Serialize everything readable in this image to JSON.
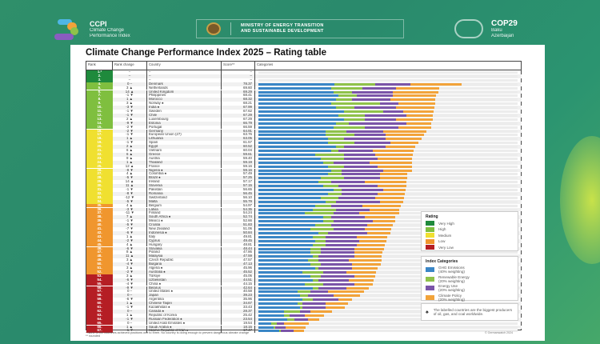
{
  "header": {
    "ccpi_abbr": "CCPI",
    "ccpi_line1": "Climate Change",
    "ccpi_line2": "Performance Index",
    "ministry_line1": "MINISTRY OF ENERGY TRANSITION",
    "ministry_line2": "AND SUSTAINABLE DEVELOPMENT",
    "cop_title": "COP29",
    "cop_line1": "Baku",
    "cop_line2": "Azerbaijan"
  },
  "title": "Climate Change Performance Index 2025 – Rating table",
  "columns": {
    "rank": "Rank",
    "change": "Rank change",
    "country": "Country",
    "score": "Score**",
    "categories": "Categories"
  },
  "colors": {
    "very_high": "#1f8a3c",
    "high": "#7fbf3f",
    "medium": "#f0e030",
    "low": "#f0962e",
    "very_low": "#b51e24",
    "ghg": "#3a86c6",
    "re": "#8fc24a",
    "eu": "#7b55a8",
    "cp": "#f2a33a"
  },
  "producer_symbol": "♠",
  "rows": [
    {
      "rank": "1.*",
      "change": "–",
      "country": "–",
      "score": "–",
      "rating": "very_high"
    },
    {
      "rank": "2.",
      "change": "–",
      "country": "–",
      "score": "–",
      "rating": "very_high"
    },
    {
      "rank": "3.",
      "change": "–",
      "country": "–",
      "score": "–",
      "rating": "very_high"
    },
    {
      "rank": "4.",
      "change": "0 –",
      "country": "Denmark",
      "score": "78.37",
      "rating": "high",
      "parts": [
        29.3,
        15.7,
        13.6,
        19.8
      ]
    },
    {
      "rank": "5.",
      "change": "3 ▲",
      "country": "Netherlands",
      "score": "69.60",
      "rating": "high",
      "parts": [
        28,
        12,
        13,
        16.6
      ]
    },
    {
      "rank": "6.",
      "change": "14 ▲",
      "country": "United Kingdom",
      "score": "69.29",
      "rating": "high",
      "parts": [
        29,
        7,
        16,
        17.3
      ]
    },
    {
      "rank": "7.",
      "change": "-1 ▼",
      "country": "Philippines",
      "score": "68.41",
      "rating": "high",
      "parts": [
        31,
        7,
        14,
        16.4
      ]
    },
    {
      "rank": "8.",
      "change": "1 ▲",
      "country": "Morocco",
      "score": "68.32",
      "rating": "high",
      "parts": [
        30,
        6,
        15,
        17.3
      ]
    },
    {
      "rank": "9.",
      "change": "3 ▲",
      "country": "Norway ♠",
      "score": "68.21",
      "rating": "high",
      "parts": [
        28,
        19,
        7,
        14.2
      ]
    },
    {
      "rank": "10.",
      "change": "-3 ▼",
      "country": "India ♠",
      "score": "67.99",
      "rating": "high",
      "parts": [
        30,
        7,
        16,
        15
      ]
    },
    {
      "rank": "11.",
      "change": "-1 ▼",
      "country": "Sweden",
      "score": "67.62",
      "rating": "high",
      "parts": [
        33,
        15,
        8,
        11.6
      ]
    },
    {
      "rank": "12.",
      "change": "-1 ▼",
      "country": "Chile",
      "score": "67.29",
      "rating": "high",
      "parts": [
        31,
        10,
        16,
        10.3
      ]
    },
    {
      "rank": "13.",
      "change": "2 ▲",
      "country": "Luxembourg",
      "score": "67.29",
      "rating": "high",
      "parts": [
        33,
        8,
        12,
        14.3
      ]
    },
    {
      "rank": "14.",
      "change": "-9 ▼",
      "country": "Estonia",
      "score": "66.79",
      "rating": "high",
      "parts": [
        30,
        5,
        22,
        9.8
      ]
    },
    {
      "rank": "15.",
      "change": "-2 ▼",
      "country": "Portugal",
      "score": "66.59",
      "rating": "high",
      "parts": [
        29,
        12,
        13,
        12.6
      ]
    },
    {
      "rank": "16.",
      "change": "-2 ▼",
      "country": "Germany",
      "score": "64.91",
      "rating": "medium",
      "parts": [
        26,
        8,
        14,
        16.9
      ]
    },
    {
      "rank": "17.",
      "change": "-1 ▼",
      "country": "European Union (27)",
      "score": "63.76",
      "rating": "medium",
      "parts": [
        26,
        11,
        12,
        14.8
      ]
    },
    {
      "rank": "18.",
      "change": "1 ▲",
      "country": "Lithuania",
      "score": "63.05",
      "rating": "medium",
      "parts": [
        27,
        6,
        16,
        14
      ]
    },
    {
      "rank": "19.",
      "change": "-1 ▼",
      "country": "Spain",
      "score": "61.57",
      "rating": "medium",
      "parts": [
        27,
        10,
        14,
        10.6
      ]
    },
    {
      "rank": "20.",
      "change": "2 ▲",
      "country": "Egypt",
      "score": "60.52",
      "rating": "medium",
      "parts": [
        30,
        3,
        16,
        11.5
      ]
    },
    {
      "rank": "21.",
      "change": "6 ▲",
      "country": "Vietnam",
      "score": "60.04",
      "rating": "medium",
      "parts": [
        28,
        3,
        13,
        16
      ]
    },
    {
      "rank": "22.",
      "change": "6 ▲",
      "country": "Greece",
      "score": "59.61",
      "rating": "medium",
      "parts": [
        22,
        11,
        12,
        14.6
      ]
    },
    {
      "rank": "23.",
      "change": "9 ▲",
      "country": "Austria",
      "score": "59.40",
      "rating": "medium",
      "parts": [
        24,
        9,
        13,
        13.4
      ]
    },
    {
      "rank": "24.",
      "change": "1 ▲",
      "country": "Thailand",
      "score": "59.19",
      "rating": "medium",
      "parts": [
        25,
        4,
        14,
        16.2
      ]
    },
    {
      "rank": "25.",
      "change": "12 ▲",
      "country": "France",
      "score": "59.16",
      "rating": "medium",
      "parts": [
        27,
        6,
        13,
        13.2
      ]
    },
    {
      "rank": "26.",
      "change": "-9 ▼",
      "country": "Nigeria ♠",
      "score": "59.16",
      "rating": "medium",
      "parts": [
        28,
        4,
        16,
        11.2
      ]
    },
    {
      "rank": "27.",
      "change": "4 ▲",
      "country": "Colombia ♠",
      "score": "57.49",
      "rating": "medium",
      "parts": [
        27,
        5,
        15,
        10.5
      ]
    },
    {
      "rank": "28.",
      "change": "-5 ▼",
      "country": "Brazil ♠",
      "score": "57.25",
      "rating": "medium",
      "parts": [
        24,
        9,
        14,
        10.3
      ]
    },
    {
      "rank": "29.",
      "change": "14 ▲",
      "country": "Ireland",
      "score": "57.17",
      "rating": "medium",
      "parts": [
        23,
        5,
        13,
        16.2
      ]
    },
    {
      "rank": "30.",
      "change": "11 ▲",
      "country": "Slovenia",
      "score": "57.15",
      "rating": "medium",
      "parts": [
        25,
        6,
        15,
        11.2
      ]
    },
    {
      "rank": "31.",
      "change": "-1 ▼",
      "country": "Pakistan",
      "score": "56.65",
      "rating": "medium",
      "parts": [
        29,
        3,
        16,
        8.7
      ]
    },
    {
      "rank": "32.",
      "change": "-8 ▼",
      "country": "Romania",
      "score": "56.45",
      "rating": "medium",
      "parts": [
        27,
        5,
        14,
        10.5
      ]
    },
    {
      "rank": "33.",
      "change": "-12 ▼",
      "country": "Switzerland",
      "score": "56.10",
      "rating": "medium",
      "parts": [
        24,
        7,
        14,
        11.1
      ]
    },
    {
      "rank": "34.",
      "change": "-5 ▼",
      "country": "Malta",
      "score": "55.79",
      "rating": "medium",
      "parts": [
        26,
        4,
        17,
        8.8
      ]
    },
    {
      "rank": "35.",
      "change": "4 ▲",
      "country": "Belgium",
      "score": "54.97",
      "rating": "low",
      "parts": [
        22,
        6,
        12,
        15
      ]
    },
    {
      "rank": "36.",
      "change": "-3 ▼",
      "country": "Latvia",
      "score": "54.35",
      "rating": "low",
      "parts": [
        21,
        9,
        13,
        11.4
      ]
    },
    {
      "rank": "37.",
      "change": "-11 ▼",
      "country": "Finland",
      "score": "54.24",
      "rating": "low",
      "parts": [
        18,
        11,
        10,
        15.2
      ]
    },
    {
      "rank": "38.",
      "change": "7 ▲",
      "country": "South Africa ♠",
      "score": "52.74",
      "rating": "low",
      "parts": [
        25,
        3,
        13,
        11.7
      ]
    },
    {
      "rank": "39.",
      "change": "-1 ▼",
      "country": "Mexico ♠",
      "score": "52.66",
      "rating": "low",
      "parts": [
        25,
        4,
        15,
        8.7
      ]
    },
    {
      "rank": "40.",
      "change": "-5 ▼",
      "country": "Croatia",
      "score": "51.83",
      "rating": "low",
      "parts": [
        22,
        6,
        14,
        9.8
      ]
    },
    {
      "rank": "41.",
      "change": "-7 ▼",
      "country": "New Zealand",
      "score": "51.06",
      "rating": "low",
      "parts": [
        20,
        9,
        12,
        10.1
      ]
    },
    {
      "rank": "42.",
      "change": "-6 ▼",
      "country": "Indonesia ♠",
      "score": "50.84",
      "rating": "low",
      "parts": [
        23,
        4,
        15,
        8.8
      ]
    },
    {
      "rank": "43.",
      "change": "1 ▲",
      "country": "Italy",
      "score": "49.81",
      "rating": "low",
      "parts": [
        21,
        5,
        12,
        11.8
      ]
    },
    {
      "rank": "44.",
      "change": "-2 ▼",
      "country": "Cyprus",
      "score": "49.45",
      "rating": "low",
      "parts": [
        22,
        4,
        13,
        10.5
      ]
    },
    {
      "rank": "45.",
      "change": "4 ▲",
      "country": "Hungary",
      "score": "48.81",
      "rating": "low",
      "parts": [
        21,
        5,
        12,
        10.8
      ]
    },
    {
      "rank": "46.",
      "change": "-6 ▼",
      "country": "Slovakia",
      "score": "48.44",
      "rating": "low",
      "parts": [
        20,
        4,
        13,
        11.4
      ]
    },
    {
      "rank": "47.",
      "change": "8 ▲",
      "country": "Poland",
      "score": "47.86",
      "rating": "low",
      "parts": [
        20,
        4,
        13,
        10.9
      ]
    },
    {
      "rank": "48.",
      "change": "11 ▲",
      "country": "Malaysia",
      "score": "47.59",
      "rating": "low",
      "parts": [
        21,
        2,
        14,
        10.6
      ]
    },
    {
      "rank": "49.",
      "change": "3 ▲",
      "country": "Czech Republic",
      "score": "47.57",
      "rating": "low",
      "parts": [
        19,
        4,
        12,
        12.6
      ]
    },
    {
      "rank": "50.",
      "change": "-4 ▼",
      "country": "Bulgaria",
      "score": "47.13",
      "rating": "low",
      "parts": [
        20,
        4,
        12,
        11.1
      ]
    },
    {
      "rank": "51.",
      "change": "3 ▲",
      "country": "Algeria ♠",
      "score": "45.96",
      "rating": "low",
      "parts": [
        22,
        1,
        13,
        10
      ]
    },
    {
      "rank": "52.",
      "change": "-2 ▼",
      "country": "Australia ♠",
      "score": "45.52",
      "rating": "low",
      "parts": [
        17,
        8,
        9,
        11.5
      ]
    },
    {
      "rank": "53.",
      "change": "3 ▲",
      "country": "Türkiye",
      "score": "45.06",
      "rating": "very_low",
      "parts": [
        20,
        4,
        13,
        8.1
      ]
    },
    {
      "rank": "54.",
      "change": "-6 ▼",
      "country": "Uzbekistan",
      "score": "44.51",
      "rating": "very_low",
      "parts": [
        21,
        2,
        12,
        9.5
      ]
    },
    {
      "rank": "55.",
      "change": "-4 ▼",
      "country": "China ♠",
      "score": "44.15",
      "rating": "very_low",
      "parts": [
        18,
        7,
        12,
        7.2
      ]
    },
    {
      "rank": "56.",
      "change": "-9 ▼",
      "country": "Belarus",
      "score": "42.64",
      "rating": "very_low",
      "parts": [
        21,
        2,
        11,
        8.6
      ]
    },
    {
      "rank": "57.",
      "change": "0 –",
      "country": "United States ♠",
      "score": "40.58",
      "rating": "very_low",
      "parts": [
        15,
        5,
        7,
        13.6
      ]
    },
    {
      "rank": "58.",
      "change": "0 –",
      "country": "Japan",
      "score": "39.23",
      "rating": "very_low",
      "parts": [
        16,
        3,
        10,
        10.2
      ]
    },
    {
      "rank": "59.",
      "change": "-6 ▼",
      "country": "Argentina",
      "score": "35.96",
      "rating": "very_low",
      "parts": [
        17,
        4,
        10,
        5
      ]
    },
    {
      "rank": "60.",
      "change": "1 ▲",
      "country": "Chinese Taipei",
      "score": "34.67",
      "rating": "very_low",
      "parts": [
        15,
        2,
        9,
        8.7
      ]
    },
    {
      "rank": "61.",
      "change": "-1 ▼",
      "country": "Kazakhstan ♠",
      "score": "33.43",
      "rating": "very_low",
      "parts": [
        16,
        1,
        9,
        7.4
      ]
    },
    {
      "rank": "62.",
      "change": "0 –",
      "country": "Canada ♠",
      "score": "28.37",
      "rating": "very_low",
      "parts": [
        10,
        6,
        4,
        8.4
      ]
    },
    {
      "rank": "63.",
      "change": "1 ▲",
      "country": "Republic of Korea",
      "score": "25.42",
      "rating": "very_low",
      "parts": [
        10,
        2,
        6,
        7.4
      ]
    },
    {
      "rank": "64.",
      "change": "-1 ▼",
      "country": "Russian Federation ♠",
      "score": "23.54",
      "rating": "very_low",
      "parts": [
        11,
        3,
        5,
        4.5
      ]
    },
    {
      "rank": "65.",
      "change": "0 –",
      "country": "United Arab Emirates ♠",
      "score": "19.54",
      "rating": "very_low",
      "parts": [
        5,
        2,
        3,
        9.5
      ]
    },
    {
      "rank": "66.",
      "change": "1 ▲",
      "country": "Saudi Arabia ♠",
      "score": "18.15",
      "rating": "very_low",
      "parts": [
        6,
        0.5,
        4,
        7.6
      ]
    },
    {
      "rank": "67.",
      "change": "-1 ▼",
      "country": "Islamic Republic of Iran ♠",
      "score": "17.47",
      "rating": "very_low",
      "parts": [
        8,
        0.5,
        5,
        4
      ]
    }
  ],
  "legend_rating": {
    "title": "Rating",
    "items": [
      {
        "key": "very_high",
        "label": "Very High"
      },
      {
        "key": "high",
        "label": "High"
      },
      {
        "key": "medium",
        "label": "Medium"
      },
      {
        "key": "low",
        "label": "Low"
      },
      {
        "key": "very_low",
        "label": "Very Low"
      }
    ]
  },
  "legend_categories": {
    "title": "Index Categories",
    "items": [
      {
        "key": "ghg",
        "label": "GHG Emissions",
        "sub": "(40% weighting)"
      },
      {
        "key": "re",
        "label": "Renewable Energy",
        "sub": "(20% weighting)"
      },
      {
        "key": "eu",
        "label": "Energy Use",
        "sub": "(20% weighting)"
      },
      {
        "key": "cp",
        "label": "Climate Policy",
        "sub": "(20% weighting)"
      }
    ]
  },
  "note": "The labelled countries are the biggest producers of oil, gas, and coal worldwide.",
  "footnote1": "* None of the countries achieved positions one to three. No country is doing enough to prevent dangerous climate change",
  "footnote2": "** rounded",
  "credit": "© Germanwatch 2024"
}
